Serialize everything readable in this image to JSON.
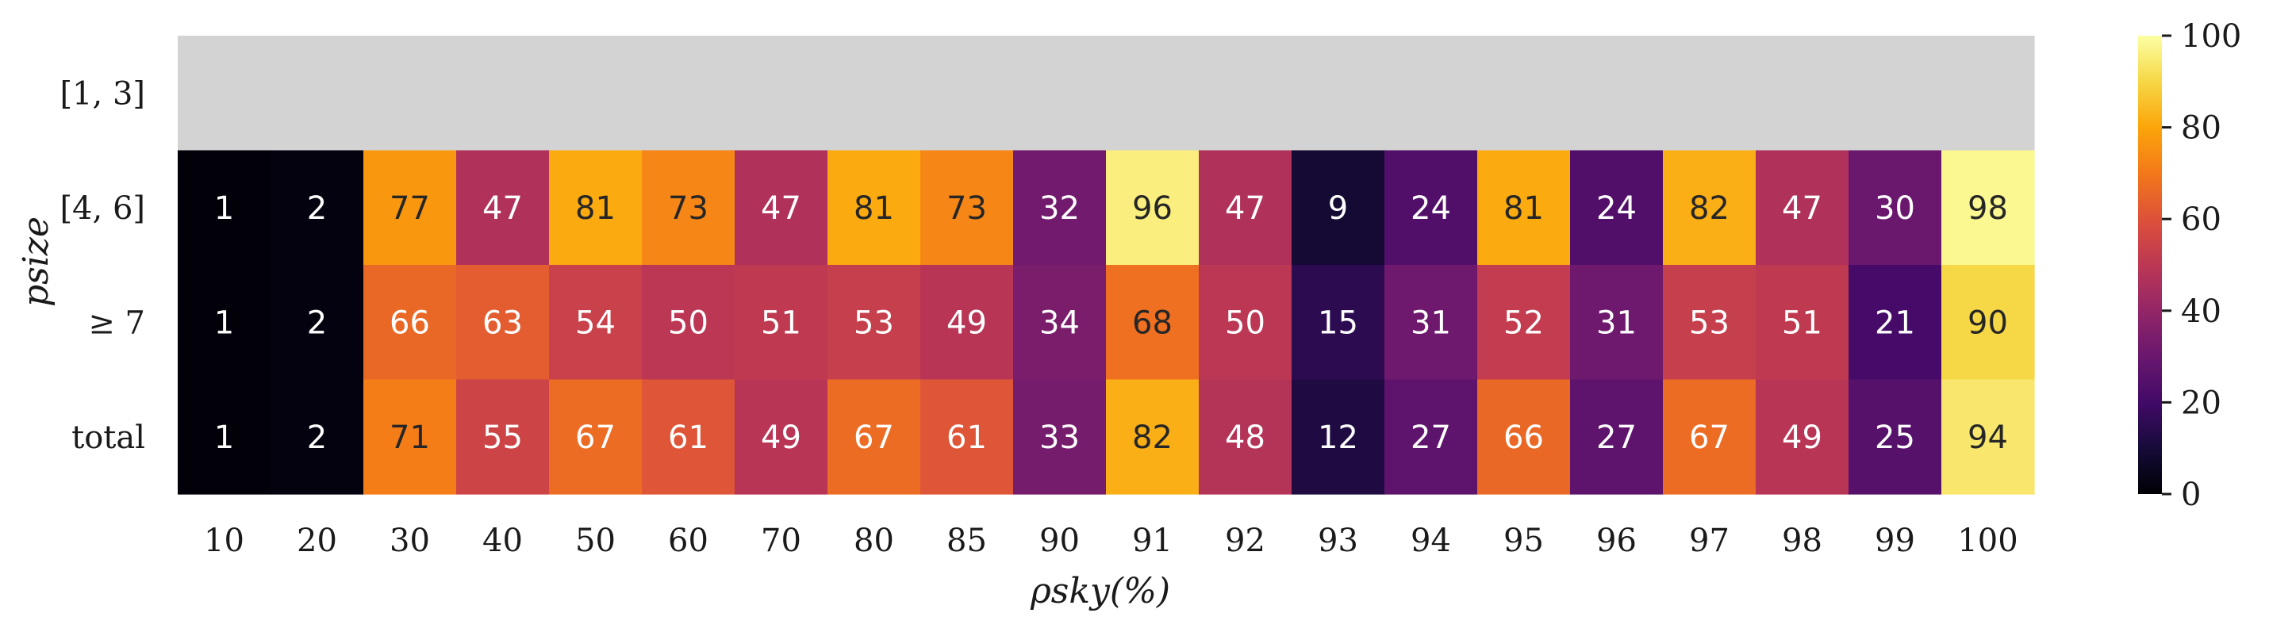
{
  "chart_data": {
    "type": "heatmap",
    "xlabel": "ρsky(%)",
    "ylabel": "psize",
    "x_categories": [
      "10",
      "20",
      "30",
      "40",
      "50",
      "60",
      "70",
      "80",
      "85",
      "90",
      "91",
      "92",
      "93",
      "94",
      "95",
      "96",
      "97",
      "98",
      "99",
      "100"
    ],
    "y_categories": [
      "[1, 3]",
      "[4, 6]",
      "≥ 7",
      "total"
    ],
    "values": [
      [
        null,
        null,
        null,
        null,
        null,
        null,
        null,
        null,
        null,
        null,
        null,
        null,
        null,
        null,
        null,
        null,
        null,
        null,
        null,
        null
      ],
      [
        1,
        2,
        77,
        47,
        81,
        73,
        47,
        81,
        73,
        32,
        96,
        47,
        9,
        24,
        81,
        24,
        82,
        47,
        30,
        98
      ],
      [
        1,
        2,
        66,
        63,
        54,
        50,
        51,
        53,
        49,
        34,
        68,
        50,
        15,
        31,
        52,
        31,
        53,
        51,
        21,
        90
      ],
      [
        1,
        2,
        71,
        55,
        67,
        61,
        49,
        67,
        61,
        33,
        82,
        48,
        12,
        27,
        66,
        27,
        67,
        49,
        25,
        94
      ]
    ],
    "missing_color": "#d3d3d3",
    "colormap": "inferno",
    "colorbar": {
      "range": [
        0,
        100
      ],
      "ticks": [
        "0",
        "20",
        "40",
        "60",
        "80",
        "100"
      ]
    }
  }
}
